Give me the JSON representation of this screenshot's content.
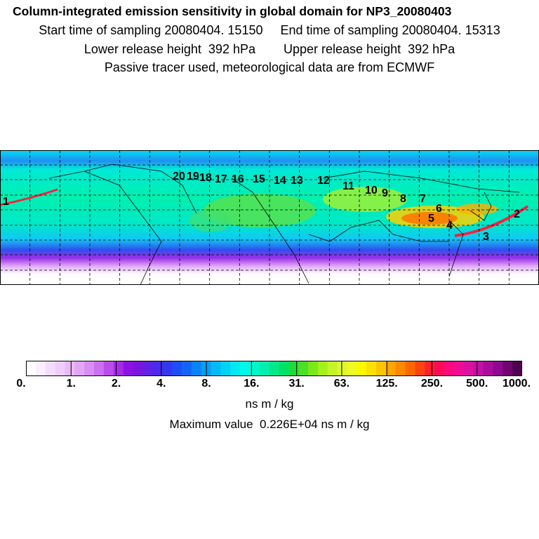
{
  "header": {
    "title": "Column-integrated emission sensitivity in global domain for NP3_20080403",
    "line1": "Start time of sampling 20080404. 15150     End time of sampling 20080404. 15313",
    "line2": "Lower release height  392 hPa        Upper release height  392 hPa",
    "line3": "Passive tracer used, meteorological data are from ECMWF"
  },
  "colorbar": {
    "labels": [
      "0.",
      "1.",
      "2.",
      "4.",
      "8.",
      "16.",
      "31.",
      "63.",
      "125.",
      "250.",
      "500.",
      "1000."
    ],
    "units": "ns m / kg",
    "max_value": "Maximum value  0.226E+04 ns m / kg",
    "colors": [
      "#ffffff",
      "#fbeefe",
      "#f5dcfd",
      "#f0ccfb",
      "#e9b9f9",
      "#e3a6f7",
      "#d98ef4",
      "#cc70f0",
      "#bb4cec",
      "#a52be8",
      "#8f12e4",
      "#7a16e0",
      "#6320e6",
      "#4c2aeb",
      "#3537f0",
      "#1f4cf4",
      "#1165f6",
      "#0a82f8",
      "#069ef8",
      "#05b8f8",
      "#00d2f6",
      "#00e8f2",
      "#00f8e6",
      "#00f6cc",
      "#00f0ac",
      "#00e88a",
      "#00e066",
      "#1cdc3c",
      "#4ce024",
      "#7ae81c",
      "#a4f01c",
      "#c4f428",
      "#dcf82c",
      "#ecfc20",
      "#fcf800",
      "#fce000",
      "#fcc400",
      "#fca400",
      "#fc8800",
      "#fc6800",
      "#fc4410",
      "#fc2030",
      "#fc0c58",
      "#fc0880",
      "#f00c94",
      "#dc10a0",
      "#c410a4",
      "#a80c9c",
      "#900890",
      "#700470",
      "#500050"
    ]
  },
  "map_labels": [
    "1",
    "2",
    "3",
    "4",
    "5",
    "6",
    "7",
    "8",
    "9",
    "10",
    "11",
    "12",
    "13",
    "14",
    "15",
    "16",
    "17",
    "18",
    "19",
    "20"
  ]
}
